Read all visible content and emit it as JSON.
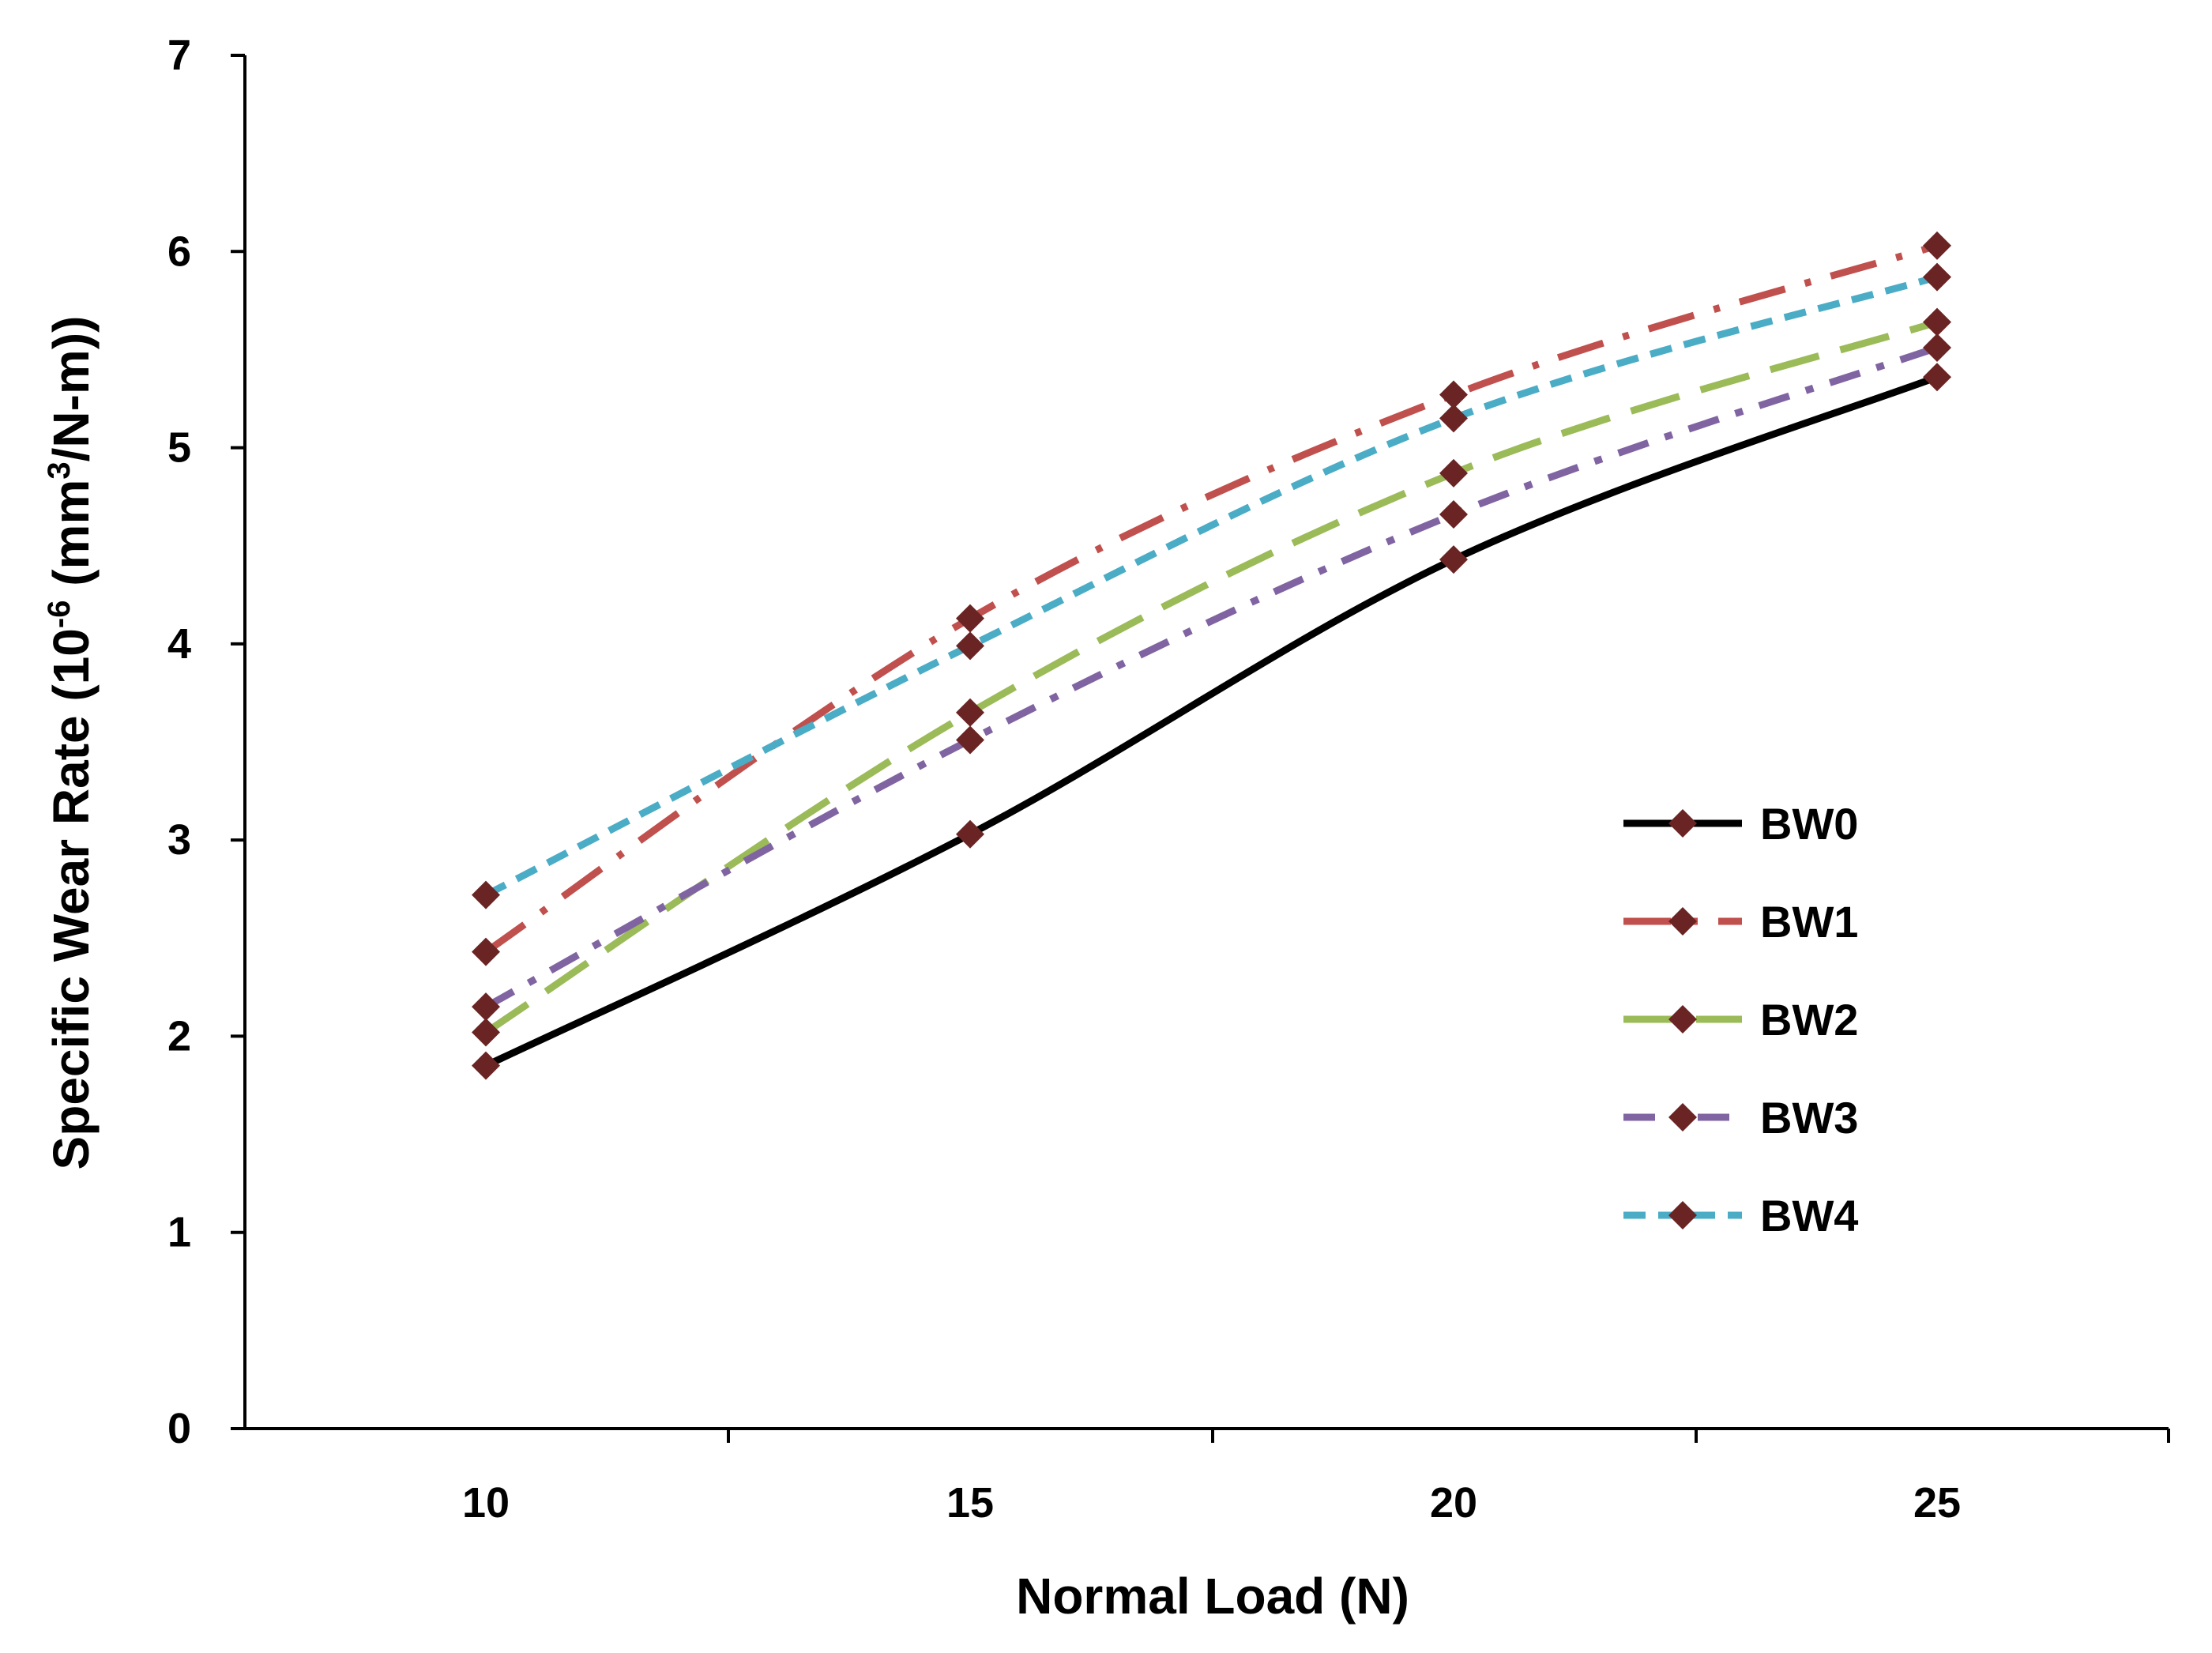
{
  "chart_data": {
    "type": "line",
    "title": "",
    "xlabel": "Normal Load (N)",
    "ylabel_prefix": "Specific Wear Rate (10",
    "ylabel_exp1": "-6",
    "ylabel_mid": " (mm",
    "ylabel_exp2": "3",
    "ylabel_suffix": "/N-m))",
    "x": [
      10,
      15,
      20,
      25
    ],
    "x_ticks": [
      "10",
      "15",
      "20",
      "25"
    ],
    "y_ticks": [
      "0",
      "1",
      "2",
      "3",
      "4",
      "5",
      "6",
      "7"
    ],
    "ylim": [
      0,
      7
    ],
    "legend_position": "right",
    "marker_color": "#6b2424",
    "series": [
      {
        "name": "BW0",
        "values": [
          1.85,
          3.03,
          4.43,
          5.36
        ],
        "color": "#000000",
        "dash": "solid"
      },
      {
        "name": "BW1",
        "values": [
          2.43,
          4.13,
          5.27,
          6.03
        ],
        "color": "#c0504d",
        "dash": "longdashdot"
      },
      {
        "name": "BW2",
        "values": [
          2.02,
          3.65,
          4.87,
          5.64
        ],
        "color": "#9bbb59",
        "dash": "longdash"
      },
      {
        "name": "BW3",
        "values": [
          2.15,
          3.51,
          4.66,
          5.51
        ],
        "color": "#8064a2",
        "dash": "dashdot"
      },
      {
        "name": "BW4",
        "values": [
          2.72,
          3.99,
          5.15,
          5.87
        ],
        "color": "#4bacc6",
        "dash": "dash"
      }
    ]
  }
}
